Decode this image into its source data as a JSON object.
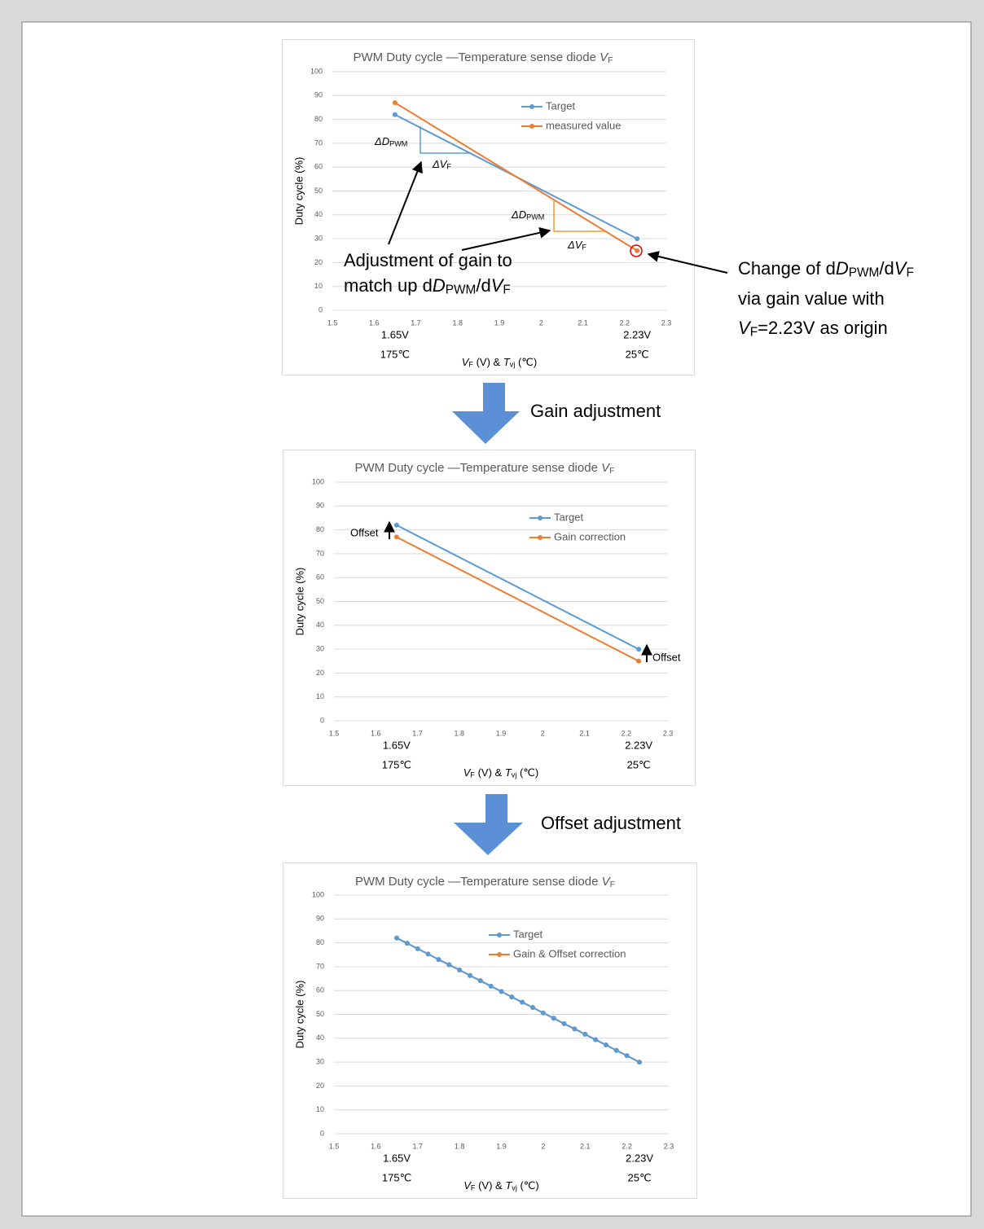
{
  "chart_data": [
    {
      "type": "line",
      "title": [
        "PWM Duty cycle —Temperature sense diode ",
        "V",
        "F"
      ],
      "y_label": "Duty cycle (%)",
      "x_label": [
        "V",
        "F",
        " (V) & ",
        "T",
        "vj",
        " (℃)"
      ],
      "xlim": [
        1.5,
        2.3
      ],
      "xticks": [
        1.5,
        1.6,
        1.7,
        1.8,
        1.9,
        2,
        2.1,
        2.2,
        2.3
      ],
      "ylim": [
        0,
        100
      ],
      "yticks": [
        0,
        10,
        20,
        30,
        40,
        50,
        60,
        70,
        80,
        90,
        100
      ],
      "grid": true,
      "x": [
        1.65,
        2.23
      ],
      "series": [
        {
          "name": "Target",
          "color": "#5b9bd5",
          "values": [
            82,
            30
          ]
        },
        {
          "name": "measured value",
          "color": "#ed7d31",
          "values": [
            87,
            25
          ]
        }
      ],
      "annotations": [
        "1.65V",
        "175℃",
        "2.23V",
        "25℃"
      ],
      "delta_labels": [
        [
          "ΔD",
          "PWM"
        ],
        [
          "ΔV",
          "F"
        ],
        [
          "ΔD",
          "PWM"
        ],
        [
          "ΔV",
          "F"
        ]
      ]
    },
    {
      "type": "line",
      "title": [
        "PWM Duty cycle —Temperature sense diode ",
        "V",
        "F"
      ],
      "y_label": "Duty cycle (%)",
      "x_label": [
        "V",
        "F",
        " (V) & ",
        "T",
        "vj",
        " (℃)"
      ],
      "xlim": [
        1.5,
        2.3
      ],
      "xticks": [
        1.5,
        1.6,
        1.7,
        1.8,
        1.9,
        2,
        2.1,
        2.2,
        2.3
      ],
      "ylim": [
        0,
        100
      ],
      "yticks": [
        0,
        10,
        20,
        30,
        40,
        50,
        60,
        70,
        80,
        90,
        100
      ],
      "grid": true,
      "x": [
        1.65,
        2.23
      ],
      "series": [
        {
          "name": "Target",
          "color": "#5b9bd5",
          "values": [
            82,
            30
          ]
        },
        {
          "name": "Gain correction",
          "color": "#ed7d31",
          "values": [
            77,
            25
          ]
        }
      ],
      "annotations": [
        "1.65V",
        "175℃",
        "2.23V",
        "25℃"
      ],
      "offset_labels": [
        "Offset",
        "Offset"
      ]
    },
    {
      "type": "line",
      "title": [
        "PWM Duty cycle —Temperature sense diode ",
        "V",
        "F"
      ],
      "y_label": "Duty cycle (%)",
      "x_label": [
        "V",
        "F",
        " (V) & ",
        "T",
        "vj",
        " (℃)"
      ],
      "xlim": [
        1.5,
        2.3
      ],
      "xticks": [
        1.5,
        1.6,
        1.7,
        1.8,
        1.9,
        2,
        2.1,
        2.2,
        2.3
      ],
      "ylim": [
        0,
        100
      ],
      "yticks": [
        0,
        10,
        20,
        30,
        40,
        50,
        60,
        70,
        80,
        90,
        100
      ],
      "grid": true,
      "x": [
        1.65,
        1.675,
        1.7,
        1.725,
        1.75,
        1.775,
        1.8,
        1.825,
        1.85,
        1.875,
        1.9,
        1.925,
        1.95,
        1.975,
        2.0,
        2.025,
        2.05,
        2.075,
        2.1,
        2.125,
        2.15,
        2.175,
        2.2,
        2.23
      ],
      "series": [
        {
          "name": "Gain & Offset correction",
          "color": "#ed7d31",
          "values": [
            82,
            79.8,
            77.5,
            75.3,
            73.0,
            70.8,
            68.6,
            66.3,
            64.1,
            61.8,
            59.6,
            57.3,
            55.1,
            52.9,
            50.6,
            48.4,
            46.1,
            43.9,
            41.7,
            39.4,
            37.2,
            34.9,
            32.7,
            30
          ]
        },
        {
          "name": "Target",
          "color": "#5b9bd5",
          "values": [
            82,
            79.8,
            77.5,
            75.3,
            73.0,
            70.8,
            68.6,
            66.3,
            64.1,
            61.8,
            59.6,
            57.3,
            55.1,
            52.9,
            50.6,
            48.4,
            46.1,
            43.9,
            41.7,
            39.4,
            37.2,
            34.9,
            32.7,
            30
          ]
        }
      ],
      "annotations": [
        "1.65V",
        "175℃",
        "2.23V",
        "25℃"
      ]
    }
  ],
  "gain_note": [
    "Adjustment of gain to",
    [
      "match up d",
      "D",
      "PWM",
      "/d",
      "V",
      "F"
    ]
  ],
  "origin_note": [
    [
      "Change of d",
      "D",
      "PWM",
      "/d",
      "V",
      "F"
    ],
    "via gain value with",
    [
      "V",
      "F",
      "=2.23V as origin"
    ]
  ],
  "steps": [
    "Gain adjustment",
    "Offset adjustment"
  ]
}
